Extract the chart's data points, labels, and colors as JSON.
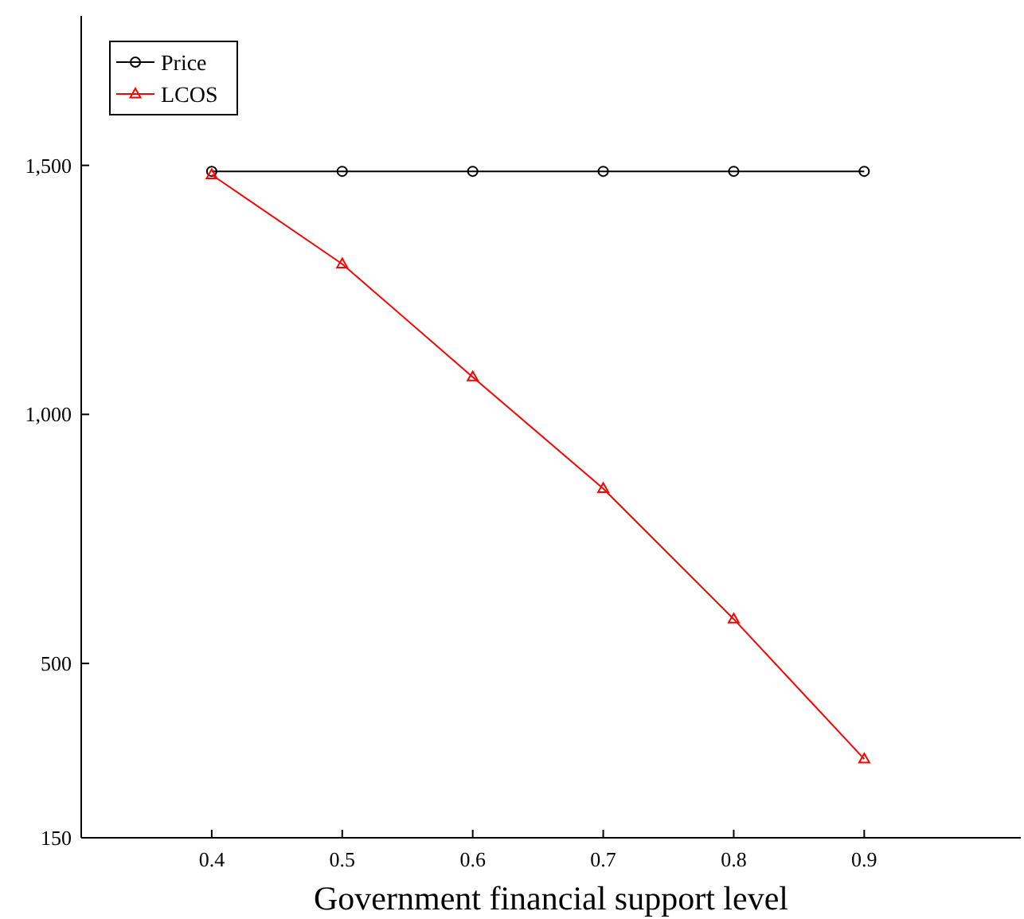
{
  "chart_data": {
    "type": "line",
    "xlabel": "Government financial support level",
    "x": [
      0.4,
      0.5,
      0.6,
      0.7,
      0.8,
      0.9
    ],
    "series": [
      {
        "name": "Price",
        "color": "#000000",
        "marker": "circle",
        "values": [
          1488,
          1488,
          1488,
          1488,
          1488,
          1488
        ]
      },
      {
        "name": "LCOS",
        "color": "#ff0000",
        "marker": "triangle",
        "values": [
          1481,
          1302,
          1075,
          851,
          589,
          308
        ]
      }
    ],
    "xlim": [
      0.3,
      1.02
    ],
    "xticks": [
      0.4,
      0.5,
      0.6,
      0.7,
      0.8,
      0.9
    ],
    "ylim": [
      150,
      1800
    ],
    "yticks": [
      {
        "value": 150,
        "label": "150"
      },
      {
        "value": 500,
        "label": "500"
      },
      {
        "value": 1000,
        "label": "1,000"
      },
      {
        "value": 1500,
        "label": "1,500"
      }
    ],
    "grid": false,
    "legend": "top left",
    "line_style": "solid"
  }
}
